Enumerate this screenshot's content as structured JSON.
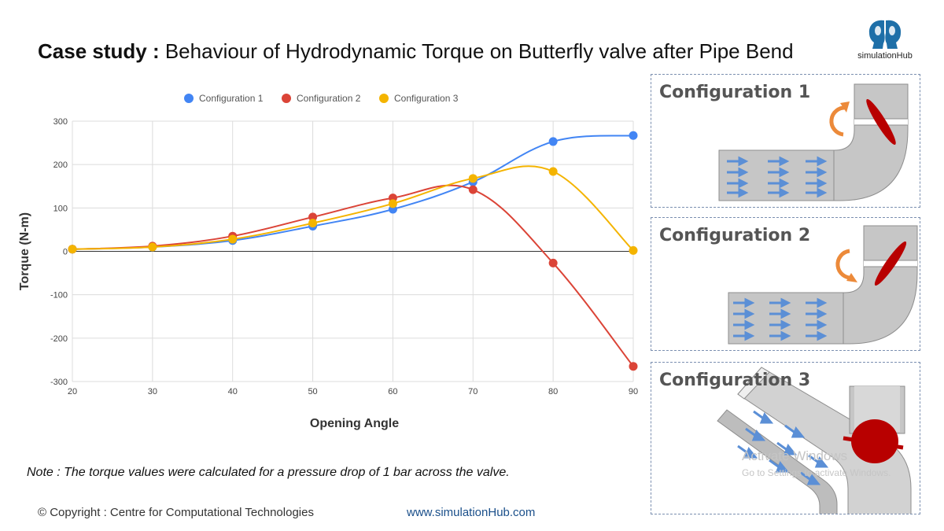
{
  "header": {
    "title_bold": "Case study :",
    "title_rest": "Behaviour of Hydrodynamic Torque on Butterfly valve after Pipe Bend"
  },
  "logo": {
    "text": "simulationHub",
    "icon": "twin-head-logo-icon",
    "color": "#1e6fa8"
  },
  "chart_data": {
    "type": "line",
    "x": [
      20,
      30,
      40,
      50,
      60,
      70,
      80,
      90
    ],
    "series": [
      {
        "name": "Configuration 1",
        "color": "#4285f4",
        "values": [
          5,
          10,
          25,
          58,
          97,
          160,
          253,
          267
        ]
      },
      {
        "name": "Configuration 2",
        "color": "#db4437",
        "values": [
          5,
          12,
          35,
          79,
          123,
          142,
          -27,
          -265
        ]
      },
      {
        "name": "Configuration 3",
        "color": "#f4b400",
        "values": [
          5,
          10,
          28,
          65,
          110,
          168,
          184,
          2
        ]
      }
    ],
    "xlabel": "Opening Angle",
    "ylabel": "Torque (N-m)",
    "xlim": [
      20,
      90
    ],
    "ylim": [
      -300,
      300
    ],
    "xticks": [
      "20",
      "30",
      "40",
      "50",
      "60",
      "70",
      "80",
      "90"
    ],
    "yticks": [
      "300",
      "200",
      "100",
      "0",
      "-100",
      "-200",
      "-300"
    ],
    "grid": true,
    "legend_position": "top"
  },
  "note": "Note : The torque values were calculated for a pressure drop of 1 bar across the valve.",
  "footer": {
    "copyright": "© Copyright : Centre for Computational Technologies",
    "website": "www.simulationHub.com"
  },
  "configurations": [
    {
      "title": "Configuration 1",
      "icon": "pipe-bend-valve-diagram-icon"
    },
    {
      "title": "Configuration 2",
      "icon": "pipe-bend-valve-diagram-icon"
    },
    {
      "title": "Configuration 3",
      "icon": "pipe-bend-valve-3d-icon"
    }
  ],
  "watermark": {
    "line1": "Activate Windows",
    "line2": "Go to Settings to activate Windows."
  },
  "colors": {
    "pipe": "#c6c6c6",
    "disc": "#b80000",
    "arrow": "#ec8a3a",
    "flow": "#5b8fd6"
  }
}
